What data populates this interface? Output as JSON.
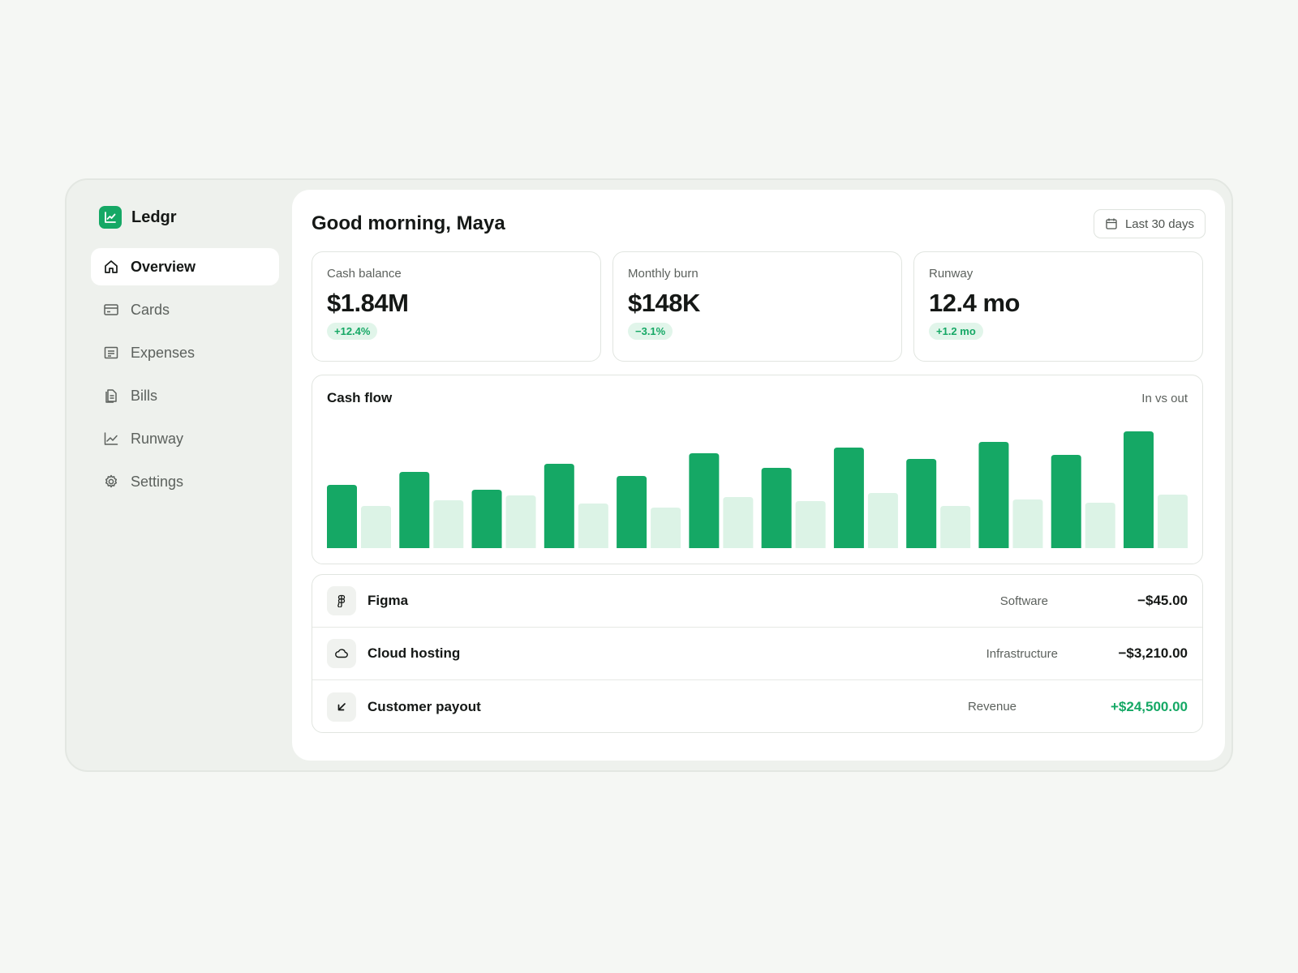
{
  "app": {
    "name": "Ledgr"
  },
  "sidebar": {
    "items": [
      {
        "label": "Overview",
        "icon": "home-icon",
        "active": true
      },
      {
        "label": "Cards",
        "icon": "card-icon"
      },
      {
        "label": "Expenses",
        "icon": "receipt-icon"
      },
      {
        "label": "Bills",
        "icon": "document-icon"
      },
      {
        "label": "Runway",
        "icon": "trend-chart-icon"
      },
      {
        "label": "Settings",
        "icon": "gear-icon"
      }
    ]
  },
  "header": {
    "greeting": "Good morning, Maya",
    "range_label": "Last 30 days"
  },
  "stats": [
    {
      "label": "Cash balance",
      "value": "$1.84M",
      "delta": "+12.4%"
    },
    {
      "label": "Monthly burn",
      "value": "$148K",
      "delta": "−3.1%"
    },
    {
      "label": "Runway",
      "value": "12.4 mo",
      "delta": "+1.2 mo"
    }
  ],
  "colors": {
    "accent": "#15a865",
    "accent_light": "#dcf3e6",
    "badge_bg": "#e1f5ea"
  },
  "chart_data": {
    "type": "bar",
    "title": "Cash flow",
    "subtitle": "In vs out",
    "categories": [
      "",
      "",
      "",
      "",
      "",
      "",
      "",
      "",
      "",
      "",
      "",
      ""
    ],
    "series": [
      {
        "color": "#15a865",
        "values": [
          78,
          94,
          72,
          104,
          89,
          117,
          99,
          124,
          110,
          131,
          115,
          144
        ]
      },
      {
        "color": "#dcf3e6",
        "values": [
          52,
          59,
          65,
          55,
          50,
          63,
          58,
          68,
          52,
          60,
          56,
          66
        ]
      }
    ],
    "ylim": [
      0,
      150
    ],
    "grid": false,
    "legend": "none"
  },
  "transactions": [
    {
      "name": "Figma",
      "icon": "figma-icon",
      "category": "Software",
      "amount": "−$45.00",
      "positive": false
    },
    {
      "name": "Cloud hosting",
      "icon": "cloud-icon",
      "category": "Infrastructure",
      "amount": "−$3,210.00",
      "positive": false
    },
    {
      "name": "Customer payout",
      "icon": "arrow-down-left-icon",
      "category": "Revenue",
      "amount": "+$24,500.00",
      "positive": true
    }
  ]
}
